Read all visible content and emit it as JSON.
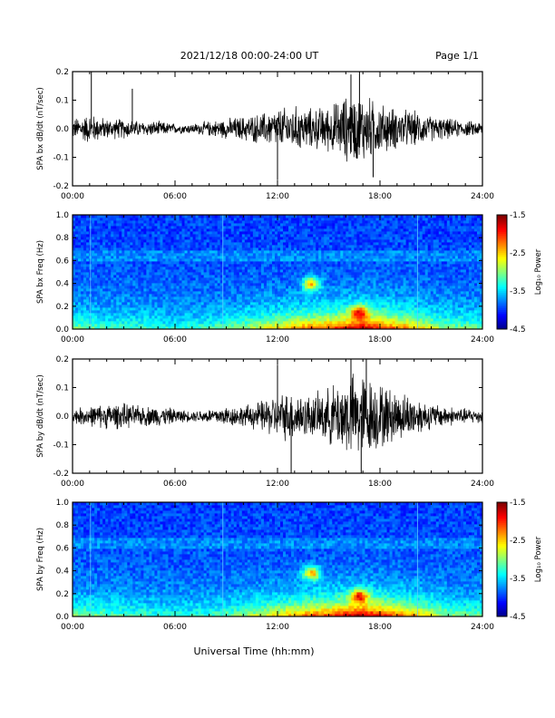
{
  "header": {
    "title": "2021/12/18  00:00-24:00 UT",
    "page": "Page 1/1"
  },
  "xlabel": "Universal Time (hh:mm)",
  "x_ticks": [
    "00:00",
    "06:00",
    "12:00",
    "18:00",
    "24:00"
  ],
  "colorbar": {
    "label": "Log₁₀ Power",
    "ticks": [
      "-1.5",
      "-2.5",
      "-3.5",
      "-4.5"
    ]
  },
  "chart_data": [
    {
      "type": "line",
      "ylabel": "SPA bx dB/dt (nT/sec)",
      "ylim": [
        -0.2,
        0.2
      ],
      "xlim_hours": [
        0,
        24
      ],
      "y_ticks": [
        "0.2",
        "0.1",
        "0.0",
        "-0.1",
        "-0.2"
      ],
      "envelope": {
        "hour": [
          0,
          1,
          2,
          3,
          4,
          5,
          6,
          7,
          8,
          9,
          10,
          11,
          12,
          13,
          14,
          15,
          16,
          17,
          18,
          19,
          20,
          21,
          22,
          23,
          24
        ],
        "amplitude": [
          0.04,
          0.06,
          0.04,
          0.04,
          0.03,
          0.03,
          0.02,
          0.02,
          0.03,
          0.04,
          0.05,
          0.06,
          0.08,
          0.09,
          0.08,
          0.09,
          0.13,
          0.14,
          0.1,
          0.08,
          0.07,
          0.05,
          0.04,
          0.03,
          0.03
        ]
      },
      "spikes": [
        {
          "hour": 1.1,
          "value": 0.2
        },
        {
          "hour": 3.5,
          "value": 0.14
        },
        {
          "hour": 12.0,
          "value": -0.18
        },
        {
          "hour": 16.3,
          "value": 0.19
        },
        {
          "hour": 16.8,
          "value": 0.2
        },
        {
          "hour": 17.6,
          "value": -0.17
        }
      ]
    },
    {
      "type": "heatmap",
      "ylabel": "SPA bx Freq (Hz)",
      "ylim": [
        0,
        1.0
      ],
      "xlim_hours": [
        0,
        24
      ],
      "y_ticks": [
        "1.0",
        "0.8",
        "0.6",
        "0.4",
        "0.2",
        "0.0"
      ],
      "zlim": [
        -4.5,
        -1.5
      ],
      "activity": {
        "hour": [
          0,
          2,
          4,
          6,
          8,
          10,
          12,
          13,
          14,
          15,
          16,
          17,
          18,
          19,
          20,
          21,
          22,
          24
        ],
        "level": [
          0.3,
          0.2,
          0.2,
          0.15,
          0.2,
          0.3,
          0.5,
          0.6,
          0.7,
          0.75,
          0.85,
          0.9,
          0.8,
          0.7,
          0.6,
          0.4,
          0.3,
          0.25
        ]
      },
      "features": [
        {
          "hour": 14.0,
          "freq": 0.4
        },
        {
          "hour": 16.8,
          "freq": 0.15
        }
      ]
    },
    {
      "type": "line",
      "ylabel": "SPA by dB/dt (nT/sec)",
      "ylim": [
        -0.2,
        0.2
      ],
      "xlim_hours": [
        0,
        24
      ],
      "y_ticks": [
        "0.2",
        "0.1",
        "0.0",
        "-0.1",
        "-0.2"
      ],
      "envelope": {
        "hour": [
          0,
          1,
          2,
          3,
          4,
          5,
          6,
          7,
          8,
          9,
          10,
          11,
          12,
          13,
          14,
          15,
          16,
          17,
          18,
          19,
          20,
          21,
          22,
          23,
          24
        ],
        "amplitude": [
          0.03,
          0.04,
          0.05,
          0.05,
          0.04,
          0.04,
          0.03,
          0.02,
          0.03,
          0.04,
          0.04,
          0.06,
          0.09,
          0.1,
          0.08,
          0.11,
          0.16,
          0.17,
          0.13,
          0.1,
          0.08,
          0.05,
          0.04,
          0.03,
          0.03
        ]
      },
      "spikes": [
        {
          "hour": 12.0,
          "value": 0.18
        },
        {
          "hour": 12.8,
          "value": -0.2
        },
        {
          "hour": 16.3,
          "value": 0.2
        },
        {
          "hour": 16.9,
          "value": -0.2
        },
        {
          "hour": 17.2,
          "value": 0.2
        }
      ]
    },
    {
      "type": "heatmap",
      "ylabel": "SPA by Freq (Hz)",
      "ylim": [
        0,
        1.0
      ],
      "xlim_hours": [
        0,
        24
      ],
      "y_ticks": [
        "1.0",
        "0.8",
        "0.6",
        "0.4",
        "0.2",
        "0.0"
      ],
      "zlim": [
        -4.5,
        -1.5
      ],
      "activity": {
        "hour": [
          0,
          2,
          4,
          6,
          8,
          10,
          12,
          13,
          14,
          15,
          16,
          17,
          18,
          19,
          20,
          21,
          22,
          24
        ],
        "level": [
          0.3,
          0.25,
          0.2,
          0.15,
          0.2,
          0.3,
          0.5,
          0.6,
          0.7,
          0.75,
          0.9,
          0.95,
          0.85,
          0.7,
          0.6,
          0.45,
          0.3,
          0.25
        ]
      },
      "features": [
        {
          "hour": 14.0,
          "freq": 0.38
        },
        {
          "hour": 16.8,
          "freq": 0.18
        }
      ]
    }
  ]
}
